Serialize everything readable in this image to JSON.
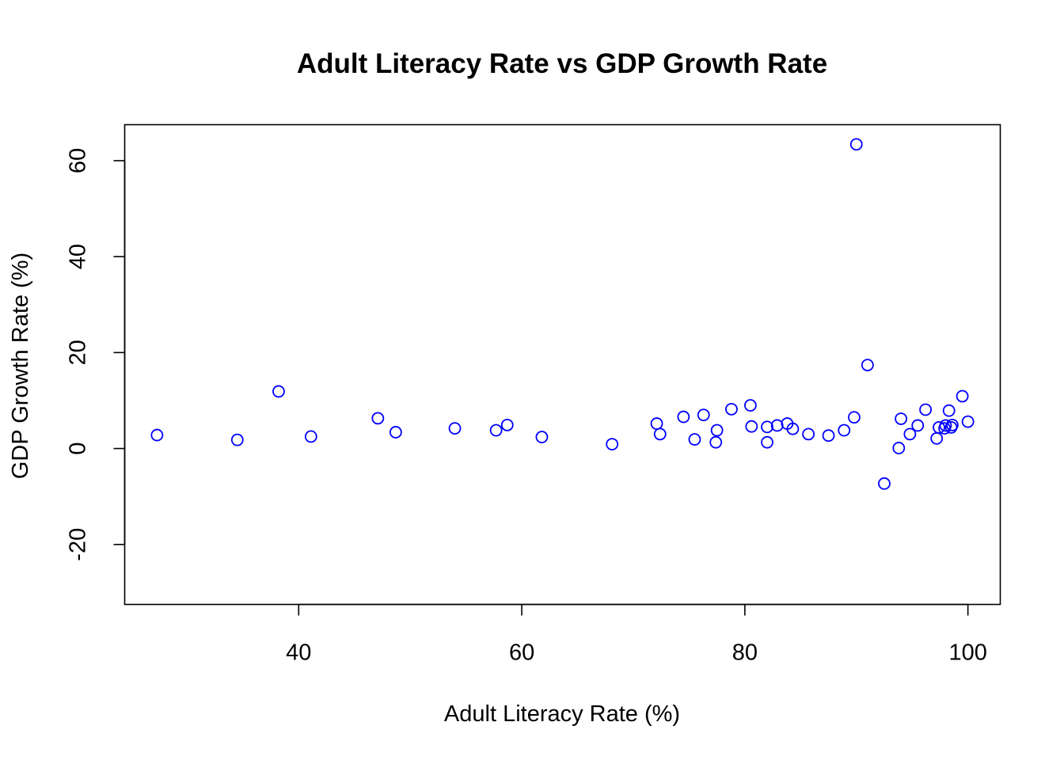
{
  "chart_data": {
    "type": "scatter",
    "title": "Adult Literacy Rate vs GDP Growth Rate",
    "xlabel": "Adult Literacy Rate (%)",
    "ylabel": "GDP Growth Rate (%)",
    "xlim": [
      24.4,
      102.9
    ],
    "ylim": [
      -32.5,
      67.5
    ],
    "xticks": [
      40,
      60,
      80,
      100
    ],
    "yticks": [
      -20,
      0,
      20,
      40,
      60
    ],
    "grid": false,
    "point_color": "#0000ff",
    "points": [
      {
        "x": 27.3,
        "y": 2.8
      },
      {
        "x": 34.5,
        "y": 1.8
      },
      {
        "x": 38.2,
        "y": 11.9
      },
      {
        "x": 41.1,
        "y": 2.5
      },
      {
        "x": 47.1,
        "y": 6.3
      },
      {
        "x": 48.7,
        "y": 3.4
      },
      {
        "x": 54.0,
        "y": 4.2
      },
      {
        "x": 57.7,
        "y": 3.8
      },
      {
        "x": 58.7,
        "y": 4.9
      },
      {
        "x": 61.8,
        "y": 2.4
      },
      {
        "x": 68.1,
        "y": 0.9
      },
      {
        "x": 72.1,
        "y": 5.2
      },
      {
        "x": 72.4,
        "y": 3.0
      },
      {
        "x": 74.5,
        "y": 6.6
      },
      {
        "x": 75.5,
        "y": 1.9
      },
      {
        "x": 76.3,
        "y": 7.0
      },
      {
        "x": 77.4,
        "y": 1.3
      },
      {
        "x": 77.5,
        "y": 3.8
      },
      {
        "x": 78.8,
        "y": 8.2
      },
      {
        "x": 80.5,
        "y": 9.0
      },
      {
        "x": 80.6,
        "y": 4.6
      },
      {
        "x": 82.0,
        "y": 1.3
      },
      {
        "x": 82.0,
        "y": 4.5
      },
      {
        "x": 82.9,
        "y": 4.8
      },
      {
        "x": 83.8,
        "y": 5.2
      },
      {
        "x": 84.3,
        "y": 4.1
      },
      {
        "x": 85.7,
        "y": 3.0
      },
      {
        "x": 87.5,
        "y": 2.7
      },
      {
        "x": 88.9,
        "y": 3.8
      },
      {
        "x": 89.8,
        "y": 6.5
      },
      {
        "x": 90.0,
        "y": 63.4
      },
      {
        "x": 91.0,
        "y": 17.4
      },
      {
        "x": 92.5,
        "y": -7.3
      },
      {
        "x": 93.8,
        "y": 0.1
      },
      {
        "x": 94.0,
        "y": 6.2
      },
      {
        "x": 94.8,
        "y": 3.0
      },
      {
        "x": 95.5,
        "y": 4.8
      },
      {
        "x": 96.2,
        "y": 8.1
      },
      {
        "x": 97.2,
        "y": 2.1
      },
      {
        "x": 97.4,
        "y": 4.4
      },
      {
        "x": 97.9,
        "y": 4.2
      },
      {
        "x": 98.0,
        "y": 4.8
      },
      {
        "x": 98.3,
        "y": 7.9
      },
      {
        "x": 98.5,
        "y": 4.4
      },
      {
        "x": 98.6,
        "y": 4.9
      },
      {
        "x": 99.5,
        "y": 10.9
      },
      {
        "x": 100.0,
        "y": 5.6
      }
    ]
  }
}
